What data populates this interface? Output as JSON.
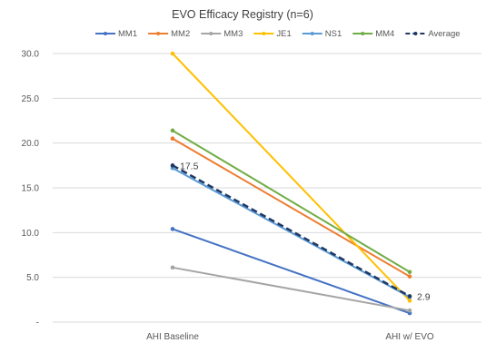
{
  "chart_data": {
    "type": "line",
    "title": "EVO Efficacy Registry (n=6)",
    "categories": [
      "AHI Baseline",
      "AHI w/ EVO"
    ],
    "y_ticks": [
      "30.0",
      "25.0",
      "20.0",
      "15.0",
      "10.0",
      "5.0",
      "-"
    ],
    "ylim": [
      0,
      30
    ],
    "grid": true,
    "legend_position": "top",
    "series": [
      {
        "name": "MM1",
        "values": [
          10.4,
          1.0
        ],
        "color": "#4472c4",
        "dashed": false
      },
      {
        "name": "MM2",
        "values": [
          20.5,
          5.1
        ],
        "color": "#ed7d31",
        "dashed": false
      },
      {
        "name": "MM3",
        "values": [
          6.1,
          1.3
        ],
        "color": "#a5a5a5",
        "dashed": false
      },
      {
        "name": "JE1",
        "values": [
          30.0,
          2.4
        ],
        "color": "#ffc000",
        "dashed": false
      },
      {
        "name": "NS1",
        "values": [
          17.2,
          2.8
        ],
        "color": "#5b9bd5",
        "dashed": false
      },
      {
        "name": "MM4",
        "values": [
          21.4,
          5.6
        ],
        "color": "#70ad47",
        "dashed": false
      },
      {
        "name": "Average",
        "values": [
          17.5,
          2.9
        ],
        "color": "#1f3864",
        "dashed": true
      }
    ],
    "data_labels": [
      {
        "series": "Average",
        "index": 0,
        "text": "17.5"
      },
      {
        "series": "Average",
        "index": 1,
        "text": "2.9"
      }
    ]
  }
}
